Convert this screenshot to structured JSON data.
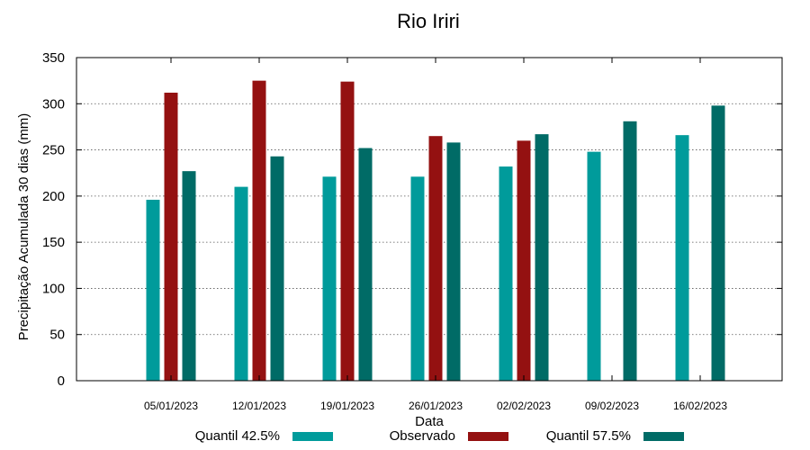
{
  "chart_data": {
    "type": "bar",
    "title": "Rio Iriri",
    "xlabel": "Data",
    "ylabel": "Precipitação Acumulada 30 dias (mm)",
    "ylim": [
      0,
      350
    ],
    "yticks": [
      0,
      50,
      100,
      150,
      200,
      250,
      300,
      350
    ],
    "grid": true,
    "legend_position": "bottom",
    "categories": [
      "05/01/2023",
      "12/01/2023",
      "19/01/2023",
      "26/01/2023",
      "02/02/2023",
      "09/02/2023",
      "16/02/2023"
    ],
    "series": [
      {
        "name": "Quantil 42.5%",
        "color": "#009b9b",
        "values": [
          196,
          210,
          221,
          221,
          232,
          248,
          266
        ]
      },
      {
        "name": "Observado",
        "color": "#941111",
        "values": [
          312,
          325,
          324,
          265,
          260,
          null,
          null
        ]
      },
      {
        "name": "Quantil 57.5%",
        "color": "#006b66",
        "values": [
          227,
          243,
          252,
          258,
          267,
          281,
          298
        ]
      }
    ]
  }
}
